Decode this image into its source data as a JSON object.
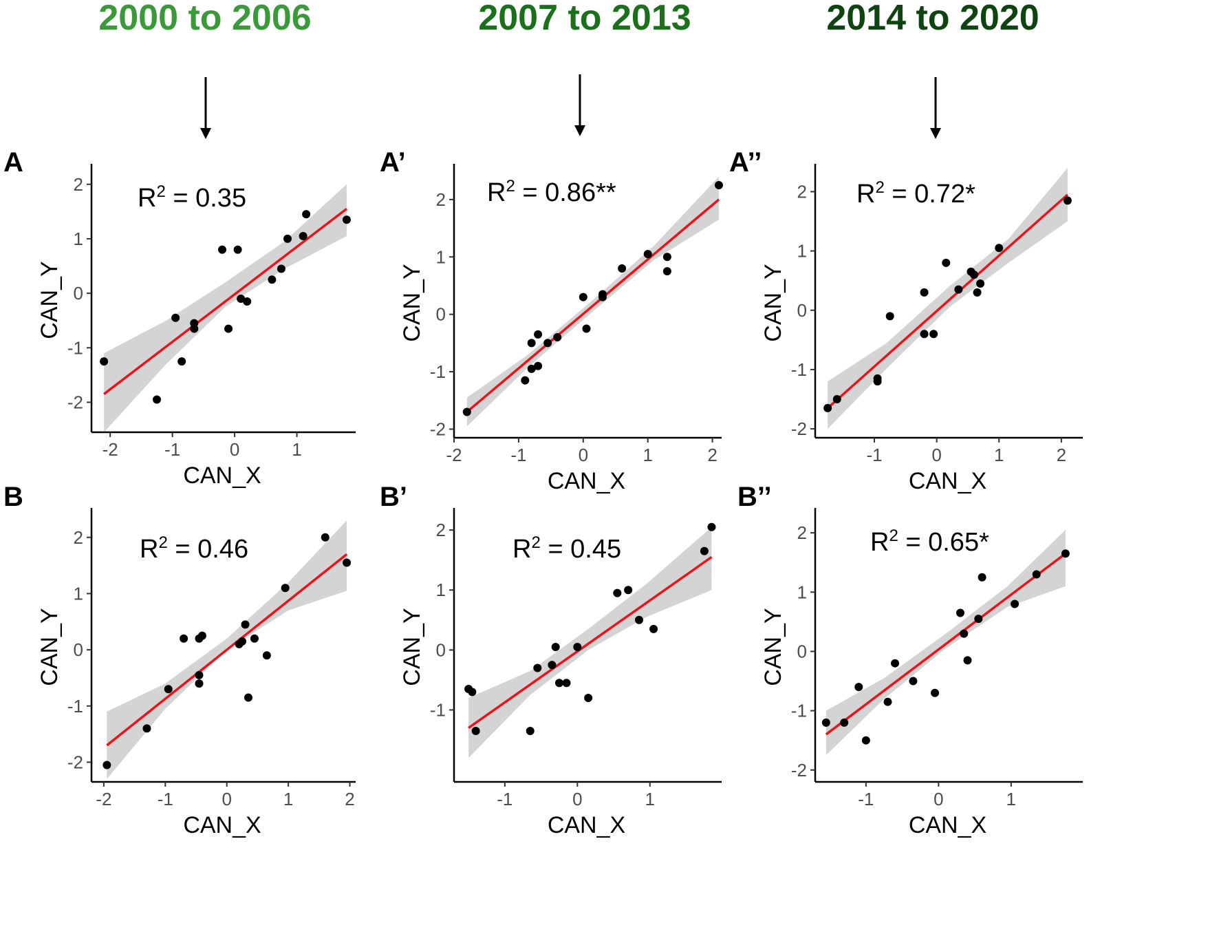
{
  "columns": [
    {
      "title": "2000 to 2006",
      "color": "#3a9a3a"
    },
    {
      "title": "2007 to 2013",
      "color": "#1b701b"
    },
    {
      "title": "2014 to 2020",
      "color": "#0d4410"
    }
  ],
  "colors": {
    "fit_line": "#e8141b",
    "ci_band": "#d4d4d4",
    "points": "#000000"
  },
  "chart_data": [
    {
      "type": "scatter",
      "label": "A",
      "r2_text": "= 0.35",
      "xlabel": "CAN_X",
      "ylabel": "CAN_Y",
      "xlim": [
        -2.3,
        1.9
      ],
      "ylim": [
        -2.55,
        2.3
      ],
      "xticks": [
        -2,
        -1,
        0,
        1
      ],
      "yticks": [
        -2,
        -1,
        0,
        1,
        2
      ],
      "xticklabels": [
        "-2",
        "-1",
        "0",
        "1"
      ],
      "yticklabels": [
        "-2",
        "-1",
        "0",
        "1",
        "2"
      ],
      "points": [
        [
          -2.1,
          -1.25
        ],
        [
          -1.25,
          -1.95
        ],
        [
          -0.95,
          -0.45
        ],
        [
          -0.85,
          -1.25
        ],
        [
          -0.65,
          -0.55
        ],
        [
          -0.65,
          -0.65
        ],
        [
          -0.2,
          0.8
        ],
        [
          -0.1,
          -0.65
        ],
        [
          0.05,
          0.8
        ],
        [
          0.1,
          -0.1
        ],
        [
          0.2,
          -0.15
        ],
        [
          0.6,
          0.25
        ],
        [
          0.75,
          0.45
        ],
        [
          0.85,
          1.0
        ],
        [
          1.1,
          1.05
        ],
        [
          1.15,
          1.45
        ],
        [
          1.8,
          1.35
        ]
      ],
      "fit": {
        "x": [
          -2.1,
          1.8
        ],
        "y": [
          -1.85,
          1.55
        ]
      },
      "band": {
        "x": [
          -2.1,
          -1.1,
          -0.15,
          0.8,
          1.8
        ],
        "lower": [
          -2.55,
          -1.3,
          -0.25,
          0.45,
          1.05
        ],
        "upper": [
          -1.1,
          -0.5,
          0.2,
          0.95,
          2.0
        ]
      }
    },
    {
      "type": "scatter",
      "label": "A’",
      "r2_text": "= 0.86**",
      "xlabel": "CAN_X",
      "ylabel": "CAN_Y",
      "xlim": [
        -2.0,
        2.1
      ],
      "ylim": [
        -2.15,
        2.55
      ],
      "xticks": [
        -2,
        -1,
        0,
        1,
        2
      ],
      "yticks": [
        -2,
        -1,
        0,
        1,
        2
      ],
      "xticklabels": [
        "-2",
        "-1",
        "0",
        "1",
        "2"
      ],
      "yticklabels": [
        "-2",
        "-1",
        "0",
        "1",
        "2"
      ],
      "points": [
        [
          -1.8,
          -1.7
        ],
        [
          -0.9,
          -1.15
        ],
        [
          -0.8,
          -0.95
        ],
        [
          -0.8,
          -0.5
        ],
        [
          -0.7,
          -0.9
        ],
        [
          -0.7,
          -0.35
        ],
        [
          -0.55,
          -0.5
        ],
        [
          -0.4,
          -0.4
        ],
        [
          0.0,
          0.3
        ],
        [
          0.05,
          -0.25
        ],
        [
          0.3,
          0.35
        ],
        [
          0.3,
          0.3
        ],
        [
          0.6,
          0.8
        ],
        [
          1.0,
          1.05
        ],
        [
          1.3,
          1.0
        ],
        [
          1.3,
          0.75
        ],
        [
          2.1,
          2.25
        ]
      ],
      "fit": {
        "x": [
          -1.8,
          2.1
        ],
        "y": [
          -1.7,
          2.0
        ]
      },
      "band": {
        "x": [
          -1.8,
          -0.85,
          0.15,
          1.1,
          2.1
        ],
        "lower": [
          -1.95,
          -0.92,
          0.05,
          0.95,
          1.65
        ],
        "upper": [
          -1.45,
          -0.7,
          0.25,
          1.2,
          2.4
        ]
      }
    },
    {
      "type": "scatter",
      "label": "A’’",
      "r2_text": "= 0.72*",
      "xlabel": "CAN_X",
      "ylabel": "CAN_Y",
      "xlim": [
        -1.95,
        2.3
      ],
      "ylim": [
        -2.15,
        2.4
      ],
      "xticks": [
        -1,
        0,
        1,
        2
      ],
      "yticks": [
        -2,
        -1,
        0,
        1,
        2
      ],
      "xticklabels": [
        "-1",
        "0",
        "1",
        "2"
      ],
      "yticklabels": [
        "-2",
        "-1",
        "0",
        "1",
        "2"
      ],
      "points": [
        [
          -1.75,
          -1.65
        ],
        [
          -1.6,
          -1.5
        ],
        [
          -0.95,
          -1.15
        ],
        [
          -0.95,
          -1.2
        ],
        [
          -0.75,
          -0.1
        ],
        [
          -0.2,
          -0.4
        ],
        [
          -0.2,
          0.3
        ],
        [
          -0.05,
          -0.4
        ],
        [
          0.15,
          0.8
        ],
        [
          0.35,
          0.35
        ],
        [
          0.55,
          0.65
        ],
        [
          0.6,
          0.6
        ],
        [
          0.65,
          0.3
        ],
        [
          0.7,
          0.45
        ],
        [
          1.0,
          1.05
        ],
        [
          2.1,
          1.85
        ]
      ],
      "fit": {
        "x": [
          -1.75,
          2.1
        ],
        "y": [
          -1.65,
          1.95
        ]
      },
      "band": {
        "x": [
          -1.75,
          -0.8,
          0.2,
          1.15,
          2.1
        ],
        "lower": [
          -2.0,
          -0.98,
          0.05,
          0.8,
          1.5
        ],
        "upper": [
          -1.2,
          -0.55,
          0.4,
          1.2,
          2.4
        ]
      }
    },
    {
      "type": "scatter",
      "label": "B",
      "r2_text": "= 0.46",
      "xlabel": "CAN_X",
      "ylabel": "CAN_Y",
      "xlim": [
        -2.2,
        2.05
      ],
      "ylim": [
        -2.35,
        2.45
      ],
      "xticks": [
        -2,
        -1,
        0,
        1,
        2
      ],
      "yticks": [
        -2,
        -1,
        0,
        1,
        2
      ],
      "xticklabels": [
        "-2",
        "-1",
        "0",
        "1",
        "2"
      ],
      "yticklabels": [
        "-2",
        "-1",
        "0",
        "1",
        "2"
      ],
      "points": [
        [
          -1.95,
          -2.05
        ],
        [
          -1.3,
          -1.4
        ],
        [
          -0.95,
          -0.7
        ],
        [
          -0.7,
          0.2
        ],
        [
          -0.45,
          -0.45
        ],
        [
          -0.45,
          -0.6
        ],
        [
          -0.45,
          0.2
        ],
        [
          -0.4,
          0.25
        ],
        [
          0.2,
          0.1
        ],
        [
          0.25,
          0.15
        ],
        [
          0.3,
          0.45
        ],
        [
          0.45,
          0.2
        ],
        [
          0.35,
          -0.85
        ],
        [
          0.65,
          -0.1
        ],
        [
          0.95,
          1.1
        ],
        [
          1.6,
          2.0
        ],
        [
          1.95,
          1.55
        ]
      ],
      "fit": {
        "x": [
          -1.95,
          1.95
        ],
        "y": [
          -1.7,
          1.7
        ]
      },
      "band": {
        "x": [
          -1.95,
          -1.0,
          0.0,
          1.0,
          1.95
        ],
        "lower": [
          -2.3,
          -1.05,
          0.0,
          0.7,
          1.05
        ],
        "upper": [
          -1.1,
          -0.6,
          0.2,
          1.2,
          2.3
        ]
      }
    },
    {
      "type": "scatter",
      "label": "B’",
      "r2_text": "= 0.45",
      "xlabel": "CAN_X",
      "ylabel": "CAN_Y",
      "xlim": [
        -1.7,
        1.95
      ],
      "ylim": [
        -2.2,
        2.3
      ],
      "xticks": [
        -1,
        0,
        1
      ],
      "yticks": [
        -1,
        0,
        1,
        2
      ],
      "xticklabels": [
        "-1",
        "0",
        "1"
      ],
      "yticklabels": [
        "-1",
        "0",
        "1",
        "2"
      ],
      "points": [
        [
          -1.5,
          -0.65
        ],
        [
          -1.45,
          -0.7
        ],
        [
          -1.4,
          -1.35
        ],
        [
          -0.65,
          -1.35
        ],
        [
          -0.55,
          -0.3
        ],
        [
          -0.35,
          -0.25
        ],
        [
          -0.3,
          0.05
        ],
        [
          -0.25,
          -0.55
        ],
        [
          -0.15,
          -0.55
        ],
        [
          0.0,
          0.05
        ],
        [
          0.15,
          -0.8
        ],
        [
          0.55,
          0.95
        ],
        [
          0.7,
          1.0
        ],
        [
          0.85,
          0.5
        ],
        [
          1.05,
          0.35
        ],
        [
          1.75,
          1.65
        ],
        [
          1.85,
          2.05
        ]
      ],
      "fit": {
        "x": [
          -1.5,
          1.85
        ],
        "y": [
          -1.3,
          1.55
        ]
      },
      "band": {
        "x": [
          -1.5,
          -0.65,
          0.15,
          0.95,
          1.85
        ],
        "lower": [
          -1.8,
          -0.75,
          0.0,
          0.55,
          1.0
        ],
        "upper": [
          -0.8,
          -0.35,
          0.35,
          1.1,
          2.05
        ]
      }
    },
    {
      "type": "scatter",
      "label": "B’’",
      "r2_text": "= 0.65*",
      "xlabel": "CAN_X",
      "ylabel": "CAN_Y",
      "xlim": [
        -1.7,
        1.95
      ],
      "ylim": [
        -2.2,
        2.35
      ],
      "xticks": [
        -1,
        0,
        1
      ],
      "yticks": [
        -2,
        -1,
        0,
        1,
        2
      ],
      "xticklabels": [
        "-1",
        "0",
        "1"
      ],
      "yticklabels": [
        "-2",
        "-1",
        "0",
        "1",
        "2"
      ],
      "points": [
        [
          -1.55,
          -1.2
        ],
        [
          -1.3,
          -1.2
        ],
        [
          -1.1,
          -0.6
        ],
        [
          -1.0,
          -1.5
        ],
        [
          -0.7,
          -0.85
        ],
        [
          -0.6,
          -0.2
        ],
        [
          -0.35,
          -0.5
        ],
        [
          -0.05,
          -0.7
        ],
        [
          0.3,
          0.65
        ],
        [
          0.35,
          0.3
        ],
        [
          0.4,
          -0.15
        ],
        [
          0.55,
          0.55
        ],
        [
          0.6,
          1.25
        ],
        [
          1.05,
          0.8
        ],
        [
          1.35,
          1.3
        ],
        [
          1.75,
          1.65
        ]
      ],
      "fit": {
        "x": [
          -1.55,
          1.75
        ],
        "y": [
          -1.4,
          1.65
        ]
      },
      "band": {
        "x": [
          -1.55,
          -0.75,
          0.1,
          0.95,
          1.75
        ],
        "lower": [
          -1.75,
          -0.8,
          0.05,
          0.75,
          1.1
        ],
        "upper": [
          -1.0,
          -0.45,
          0.3,
          1.1,
          2.05
        ]
      }
    }
  ]
}
